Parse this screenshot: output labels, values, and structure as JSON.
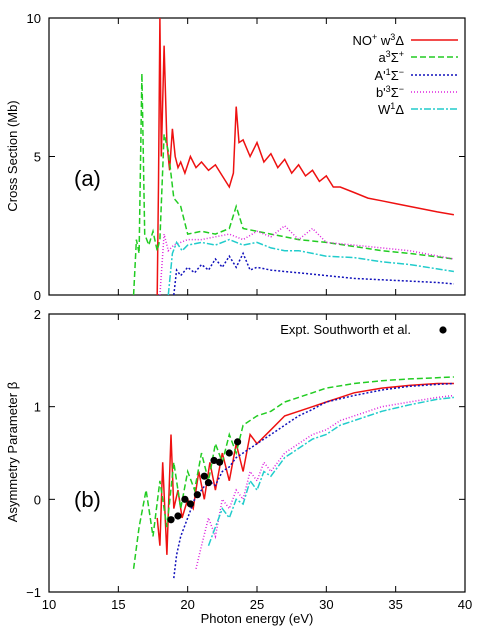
{
  "chart_data": [
    {
      "panel": "(a)",
      "type": "line",
      "ylabel": "Cross Section (Mb)",
      "xlim": [
        10,
        40
      ],
      "ylim": [
        0,
        10
      ],
      "yticks": [
        "0",
        "5",
        "10"
      ],
      "legend": "top-right",
      "series": [
        {
          "name": "NO+ w3Δ",
          "color": "#ee1111",
          "dash": "solid",
          "x": [
            17.8,
            17.9,
            18.0,
            18.1,
            18.3,
            18.5,
            18.7,
            18.9,
            19.1,
            19.3,
            19.5,
            19.8,
            20.2,
            20.6,
            21,
            21.5,
            22,
            22.5,
            23,
            23.3,
            23.5,
            23.7,
            24,
            24.5,
            25,
            25.5,
            26,
            26.5,
            27,
            27.5,
            28,
            28.5,
            29,
            29.5,
            30,
            30.5,
            31,
            32,
            33,
            34,
            35,
            36,
            37,
            38,
            39.2
          ],
          "y": [
            0,
            4,
            10,
            5,
            9,
            5.5,
            4.5,
            6,
            5,
            4.6,
            4.8,
            4.4,
            5,
            4.6,
            4.8,
            4.5,
            4.7,
            4.3,
            3.9,
            4.4,
            6.8,
            5.5,
            5.6,
            5,
            5.5,
            4.8,
            5.1,
            4.6,
            4.9,
            4.4,
            4.7,
            4.3,
            4.5,
            4.1,
            4.3,
            3.9,
            3.9,
            3.7,
            3.5,
            3.4,
            3.3,
            3.2,
            3.1,
            3.0,
            2.9
          ]
        },
        {
          "name": "a3Σ+",
          "color": "#22cc22",
          "dash": "6,3",
          "x": [
            16.1,
            16.3,
            16.5,
            16.7,
            16.9,
            17.2,
            17.5,
            17.8,
            18.0,
            18.3,
            18.6,
            19.0,
            19.5,
            20,
            21,
            22,
            23,
            23.5,
            24,
            25,
            26,
            27,
            28,
            30,
            32,
            34,
            36,
            39.2
          ],
          "y": [
            0,
            2,
            1.5,
            8,
            2.2,
            1.8,
            2.3,
            1.6,
            2.0,
            5.8,
            5.2,
            3.5,
            3.2,
            2.2,
            2.3,
            2.2,
            2.4,
            3.2,
            2.4,
            2.3,
            2.2,
            2.1,
            2.0,
            1.9,
            1.75,
            1.6,
            1.5,
            1.3
          ]
        },
        {
          "name": "A'1Σ−",
          "color": "#1111bb",
          "dash": "2,2",
          "x": [
            19.0,
            19.2,
            19.5,
            20,
            20.5,
            21,
            21.5,
            22,
            22.5,
            23,
            23.5,
            24,
            24.5,
            25,
            26,
            27,
            28,
            29,
            30,
            32,
            34,
            36,
            38,
            39.2
          ],
          "y": [
            0,
            0.9,
            0.7,
            1.0,
            0.8,
            1.1,
            0.9,
            1.3,
            1.0,
            1.4,
            1.0,
            1.5,
            0.9,
            1.0,
            0.9,
            0.85,
            0.8,
            0.75,
            0.7,
            0.6,
            0.55,
            0.5,
            0.45,
            0.4
          ]
        },
        {
          "name": "b'3Σ−",
          "color": "#dd22dd",
          "dash": "1,2",
          "x": [
            18.0,
            18.3,
            18.6,
            19,
            19.5,
            20,
            21,
            22,
            23,
            24,
            25,
            26,
            27,
            28,
            29,
            30,
            32,
            34,
            36,
            39.2
          ],
          "y": [
            0,
            2.2,
            1.6,
            1.8,
            1.9,
            2.0,
            2.0,
            2.1,
            2.2,
            2.0,
            2.3,
            2.1,
            2.5,
            2.0,
            2.4,
            1.9,
            1.8,
            1.7,
            1.6,
            1.3
          ]
        },
        {
          "name": "W1Δ",
          "color": "#22cccc",
          "dash": "7,2,2,2",
          "x": [
            18.6,
            18.9,
            19.2,
            19.6,
            20,
            21,
            22,
            23,
            24,
            25,
            26,
            27,
            28,
            29,
            30,
            32,
            34,
            36,
            39.2
          ],
          "y": [
            0,
            1.5,
            1.9,
            1.6,
            1.8,
            1.9,
            1.8,
            2.0,
            1.8,
            1.9,
            1.7,
            1.6,
            1.6,
            1.5,
            1.4,
            1.35,
            1.2,
            1.1,
            0.85
          ]
        }
      ]
    },
    {
      "panel": "(b)",
      "type": "line",
      "xlabel": "Photon energy (eV)",
      "ylabel": "Asymmetry Parameter β",
      "xlim": [
        10,
        40
      ],
      "ylim": [
        -1,
        2
      ],
      "xticks": [
        "10",
        "15",
        "20",
        "25",
        "30",
        "35",
        "40"
      ],
      "yticks": [
        "−1",
        "0",
        "1",
        "2"
      ],
      "legend": "top-right",
      "series": [
        {
          "name": "NO+ w3Δ",
          "color": "#ee1111",
          "dash": "solid",
          "x": [
            17.8,
            18.0,
            18.2,
            18.5,
            18.8,
            19.0,
            19.3,
            19.6,
            20,
            20.4,
            20.8,
            21.2,
            21.6,
            22,
            22.5,
            23,
            23.5,
            24,
            24.5,
            25,
            26,
            27,
            28,
            29,
            30,
            31,
            32,
            34,
            36,
            38,
            39.2
          ],
          "y": [
            -0.2,
            -0.5,
            0.4,
            -0.6,
            0.7,
            -0.1,
            0.1,
            -0.2,
            0.0,
            -0.1,
            0.3,
            0.0,
            0.4,
            0.1,
            0.5,
            0.2,
            0.6,
            0.3,
            0.7,
            0.6,
            0.75,
            0.9,
            0.95,
            1.0,
            1.05,
            1.1,
            1.15,
            1.2,
            1.23,
            1.25,
            1.25
          ]
        },
        {
          "name": "a3Σ+",
          "color": "#22cc22",
          "dash": "6,3",
          "x": [
            16.1,
            16.5,
            17.0,
            17.5,
            18.0,
            18.5,
            19,
            19.5,
            20,
            20.5,
            21,
            21.5,
            22,
            22.5,
            23,
            23.5,
            24,
            25,
            26,
            27,
            28,
            29,
            30,
            32,
            34,
            36,
            39.2
          ],
          "y": [
            -0.75,
            -0.3,
            0.1,
            -0.4,
            0.2,
            -0.3,
            0.4,
            -0.1,
            0.3,
            0.1,
            0.5,
            0.2,
            0.6,
            0.4,
            0.7,
            0.5,
            0.8,
            0.9,
            0.95,
            1.05,
            1.1,
            1.15,
            1.2,
            1.25,
            1.28,
            1.3,
            1.32
          ]
        },
        {
          "name": "A'1Σ−",
          "color": "#1111bb",
          "dash": "2,2",
          "x": [
            19.0,
            19.2,
            19.5,
            20,
            20.5,
            21,
            21.5,
            22,
            22.5,
            23,
            23.5,
            24,
            25,
            26,
            27,
            28,
            29,
            30,
            32,
            34,
            36,
            38,
            39.2
          ],
          "y": [
            -0.85,
            -0.6,
            -0.4,
            -0.2,
            0.0,
            0.1,
            0.2,
            0.15,
            0.3,
            0.35,
            0.45,
            0.5,
            0.6,
            0.7,
            0.8,
            0.9,
            0.97,
            1.05,
            1.12,
            1.18,
            1.22,
            1.24,
            1.25
          ]
        },
        {
          "name": "b'3Σ−",
          "color": "#dd22dd",
          "dash": "1,2",
          "x": [
            20.6,
            21,
            21.5,
            22,
            22.5,
            23,
            23.5,
            24,
            24.5,
            25,
            25.5,
            26,
            27,
            28,
            29,
            30,
            31,
            32,
            34,
            36,
            38,
            39.2
          ],
          "y": [
            -0.75,
            -0.5,
            -0.2,
            -0.4,
            0.0,
            -0.1,
            0.1,
            0.0,
            0.3,
            0.2,
            0.4,
            0.3,
            0.5,
            0.6,
            0.7,
            0.75,
            0.85,
            0.9,
            1.0,
            1.05,
            1.1,
            1.12
          ]
        },
        {
          "name": "W1Δ",
          "color": "#22cccc",
          "dash": "7,2,2,2",
          "x": [
            21.5,
            22,
            22.5,
            23,
            23.5,
            24,
            24.5,
            25,
            25.5,
            26,
            27,
            28,
            29,
            30,
            31,
            32,
            34,
            36,
            38,
            39.2
          ],
          "y": [
            -0.5,
            -0.3,
            -0.1,
            -0.2,
            0.0,
            -0.05,
            0.2,
            0.1,
            0.3,
            0.25,
            0.45,
            0.55,
            0.65,
            0.7,
            0.8,
            0.85,
            0.95,
            1.02,
            1.08,
            1.1
          ]
        }
      ],
      "points": {
        "name": "Expt. Southworth et al.",
        "color": "#000000",
        "x": [
          18.8,
          19.3,
          19.8,
          20.2,
          20.7,
          21.2,
          21.5,
          21.9,
          22.3,
          23.0,
          23.6
        ],
        "y": [
          -0.22,
          -0.18,
          0.0,
          -0.05,
          0.05,
          0.25,
          0.18,
          0.42,
          0.4,
          0.5,
          0.62
        ]
      }
    }
  ],
  "legend_a": {
    "l1": "NO",
    "l1_sup": "+",
    "l1_rest": " w",
    "l1_sup2": "3",
    "l1_tail": "Δ",
    "l2": "a",
    "l2_sup": "3",
    "l2_tail": "Σ",
    "l2_sup2": "+",
    "l3": "A'",
    "l3_sup": "1",
    "l3_tail": "Σ",
    "l3_sup2": "−",
    "l4": "b'",
    "l4_sup": "3",
    "l4_tail": "Σ",
    "l4_sup2": "−",
    "l5": "W",
    "l5_sup": "1",
    "l5_tail": "Δ"
  }
}
